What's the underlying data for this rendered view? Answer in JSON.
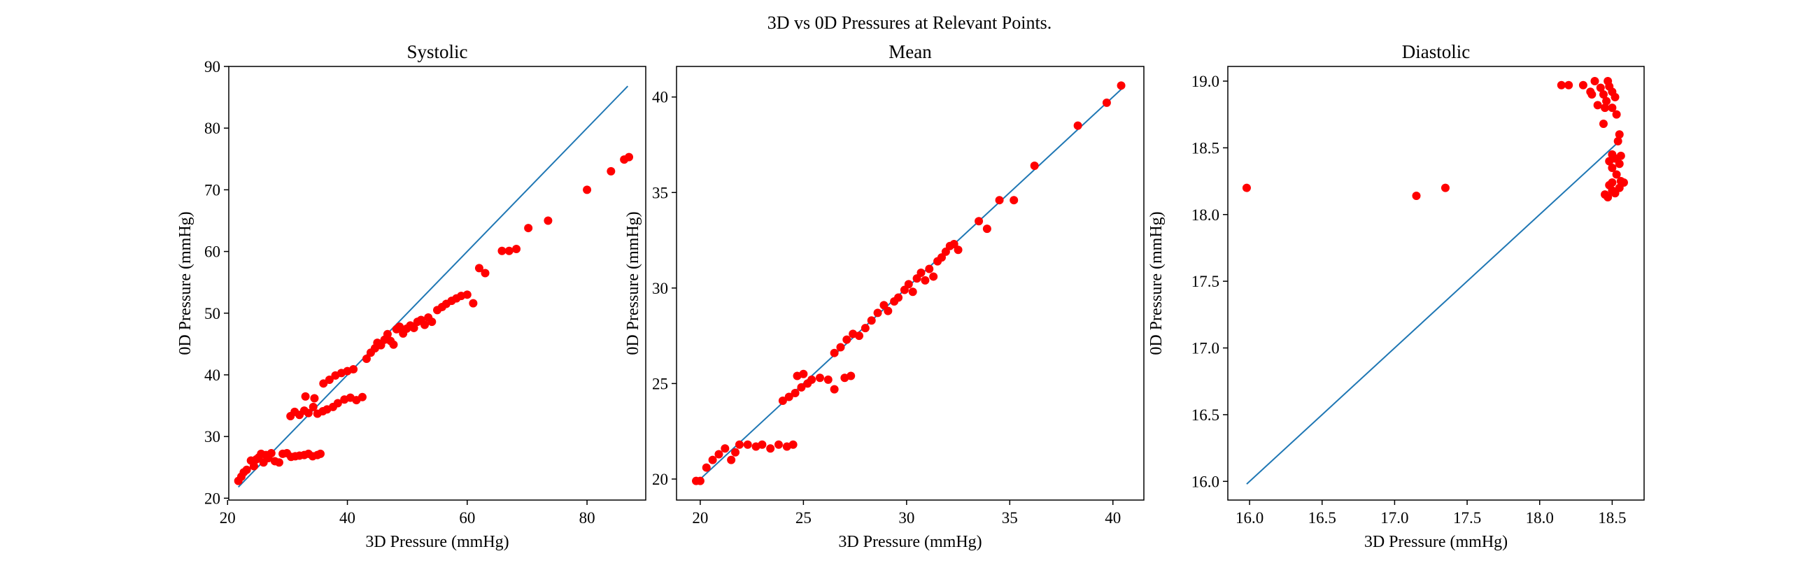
{
  "figure": {
    "title": "3D vs 0D Pressures at Relevant Points."
  },
  "colors": {
    "points": "#ff0000",
    "identity_line": "#1f77b4",
    "axes": "#000000",
    "background": "#ffffff"
  },
  "chart_data": [
    {
      "type": "scatter",
      "title": "Systolic",
      "xlabel": "3D Pressure (mmHg)",
      "ylabel": "0D Pressure (mmHg)",
      "xlim": [
        20.2,
        89.8
      ],
      "ylim": [
        19.7,
        90
      ],
      "xticks": [
        20,
        40,
        60,
        80
      ],
      "yticks": [
        20,
        30,
        40,
        50,
        60,
        70,
        80,
        90
      ],
      "grid": false,
      "legend": "none",
      "identity_line": [
        [
          21.8,
          21.8
        ],
        [
          86.8,
          86.8
        ]
      ],
      "points": [
        [
          21.8,
          22.8
        ],
        [
          22.3,
          23.5
        ],
        [
          22.7,
          24.2
        ],
        [
          23.2,
          24.6
        ],
        [
          23.9,
          26.1
        ],
        [
          24.4,
          25.2
        ],
        [
          24.8,
          26.3
        ],
        [
          25.2,
          26.6
        ],
        [
          25.6,
          27.2
        ],
        [
          26.0,
          25.8
        ],
        [
          26.4,
          27.0
        ],
        [
          26.8,
          26.5
        ],
        [
          27.3,
          27.3
        ],
        [
          27.9,
          26.0
        ],
        [
          28.6,
          25.8
        ],
        [
          29.2,
          27.2
        ],
        [
          29.9,
          27.3
        ],
        [
          30.6,
          26.7
        ],
        [
          31.3,
          26.8
        ],
        [
          32.0,
          26.9
        ],
        [
          32.8,
          27.0
        ],
        [
          33.5,
          27.2
        ],
        [
          34.2,
          26.8
        ],
        [
          35.0,
          27.0
        ],
        [
          35.5,
          27.2
        ],
        [
          30.5,
          33.3
        ],
        [
          31.2,
          34.0
        ],
        [
          32.0,
          33.5
        ],
        [
          32.8,
          34.2
        ],
        [
          33.5,
          33.8
        ],
        [
          34.3,
          34.8
        ],
        [
          35.0,
          33.7
        ],
        [
          35.9,
          34.1
        ],
        [
          36.6,
          34.4
        ],
        [
          37.6,
          34.8
        ],
        [
          38.4,
          35.4
        ],
        [
          39.5,
          36.0
        ],
        [
          40.5,
          36.3
        ],
        [
          41.5,
          35.9
        ],
        [
          42.5,
          36.4
        ],
        [
          33.0,
          36.5
        ],
        [
          34.5,
          36.2
        ],
        [
          36.0,
          38.6
        ],
        [
          37.0,
          39.2
        ],
        [
          38.0,
          39.9
        ],
        [
          39.0,
          40.3
        ],
        [
          40.0,
          40.6
        ],
        [
          41.0,
          40.9
        ],
        [
          43.2,
          42.6
        ],
        [
          43.9,
          43.6
        ],
        [
          44.6,
          44.3
        ],
        [
          45.0,
          45.2
        ],
        [
          45.6,
          44.8
        ],
        [
          46.2,
          45.7
        ],
        [
          46.7,
          46.6
        ],
        [
          47.2,
          45.5
        ],
        [
          47.7,
          44.9
        ],
        [
          48.2,
          47.4
        ],
        [
          48.7,
          47.8
        ],
        [
          49.3,
          46.7
        ],
        [
          49.9,
          47.5
        ],
        [
          50.5,
          48.0
        ],
        [
          51.1,
          47.6
        ],
        [
          51.7,
          48.6
        ],
        [
          52.3,
          48.9
        ],
        [
          52.9,
          48.1
        ],
        [
          53.5,
          49.3
        ],
        [
          54.1,
          48.6
        ],
        [
          55.0,
          50.5
        ],
        [
          55.8,
          51.0
        ],
        [
          56.5,
          51.5
        ],
        [
          57.4,
          52.0
        ],
        [
          58.2,
          52.4
        ],
        [
          59.0,
          52.8
        ],
        [
          60.0,
          53.0
        ],
        [
          61.0,
          51.6
        ],
        [
          62.0,
          57.3
        ],
        [
          63.0,
          56.5
        ],
        [
          65.8,
          60.1
        ],
        [
          67.0,
          60.1
        ],
        [
          68.2,
          60.4
        ],
        [
          70.2,
          63.8
        ],
        [
          73.5,
          65.0
        ],
        [
          80.0,
          70.0
        ],
        [
          84.0,
          73.0
        ],
        [
          86.2,
          74.9
        ],
        [
          87.0,
          75.3
        ]
      ]
    },
    {
      "type": "scatter",
      "title": "Mean",
      "xlabel": "3D Pressure (mmHg)",
      "ylabel": "0D Pressure (mmHg)",
      "xlim": [
        18.85,
        41.5
      ],
      "ylim": [
        18.9,
        41.6
      ],
      "xticks": [
        20,
        25,
        30,
        35,
        40
      ],
      "yticks": [
        20,
        25,
        30,
        35,
        40
      ],
      "grid": false,
      "legend": "none",
      "identity_line": [
        [
          19.9,
          19.9
        ],
        [
          40.5,
          40.5
        ]
      ],
      "points": [
        [
          19.8,
          19.9
        ],
        [
          20.0,
          19.9
        ],
        [
          20.3,
          20.6
        ],
        [
          20.6,
          21.0
        ],
        [
          20.9,
          21.3
        ],
        [
          21.2,
          21.6
        ],
        [
          21.5,
          21.0
        ],
        [
          21.7,
          21.4
        ],
        [
          21.9,
          21.8
        ],
        [
          22.3,
          21.8
        ],
        [
          22.7,
          21.7
        ],
        [
          23.0,
          21.8
        ],
        [
          23.4,
          21.6
        ],
        [
          23.8,
          21.8
        ],
        [
          24.2,
          21.7
        ],
        [
          24.5,
          21.8
        ],
        [
          24.0,
          24.1
        ],
        [
          24.3,
          24.3
        ],
        [
          24.6,
          24.5
        ],
        [
          24.9,
          24.8
        ],
        [
          25.2,
          25.0
        ],
        [
          24.7,
          25.4
        ],
        [
          25.0,
          25.5
        ],
        [
          25.4,
          25.2
        ],
        [
          25.8,
          25.3
        ],
        [
          26.2,
          25.2
        ],
        [
          26.5,
          24.7
        ],
        [
          27.0,
          25.3
        ],
        [
          27.3,
          25.4
        ],
        [
          26.5,
          26.6
        ],
        [
          26.8,
          26.9
        ],
        [
          27.1,
          27.3
        ],
        [
          27.4,
          27.6
        ],
        [
          27.7,
          27.5
        ],
        [
          28.0,
          27.9
        ],
        [
          28.3,
          28.3
        ],
        [
          28.6,
          28.7
        ],
        [
          28.9,
          29.1
        ],
        [
          29.1,
          28.8
        ],
        [
          29.4,
          29.3
        ],
        [
          29.6,
          29.5
        ],
        [
          29.9,
          29.9
        ],
        [
          30.1,
          30.2
        ],
        [
          30.3,
          29.8
        ],
        [
          30.5,
          30.5
        ],
        [
          30.7,
          30.8
        ],
        [
          30.9,
          30.4
        ],
        [
          31.1,
          31.0
        ],
        [
          31.3,
          30.6
        ],
        [
          31.5,
          31.4
        ],
        [
          31.7,
          31.6
        ],
        [
          31.9,
          31.9
        ],
        [
          32.1,
          32.2
        ],
        [
          32.3,
          32.3
        ],
        [
          32.5,
          32.0
        ],
        [
          33.5,
          33.5
        ],
        [
          33.9,
          33.1
        ],
        [
          34.5,
          34.6
        ],
        [
          35.2,
          34.6
        ],
        [
          36.2,
          36.4
        ],
        [
          38.3,
          38.5
        ],
        [
          39.7,
          39.7
        ],
        [
          40.4,
          40.6
        ]
      ]
    },
    {
      "type": "scatter",
      "title": "Diastolic",
      "xlabel": "3D Pressure (mmHg)",
      "ylabel": "0D Pressure (mmHg)",
      "xlim": [
        15.85,
        18.72
      ],
      "ylim": [
        15.86,
        19.11
      ],
      "xticks": [
        16.0,
        16.5,
        17.0,
        17.5,
        18.0,
        18.5
      ],
      "yticks": [
        16.0,
        16.5,
        17.0,
        17.5,
        18.0,
        18.5,
        19.0
      ],
      "grid": false,
      "legend": "none",
      "identity_line": [
        [
          15.98,
          15.98
        ],
        [
          18.56,
          18.56
        ]
      ],
      "points": [
        [
          15.98,
          18.2
        ],
        [
          17.15,
          18.14
        ],
        [
          17.35,
          18.2
        ],
        [
          18.15,
          18.97
        ],
        [
          18.2,
          18.97
        ],
        [
          18.3,
          18.97
        ],
        [
          18.35,
          18.92
        ],
        [
          18.38,
          19.0
        ],
        [
          18.42,
          18.95
        ],
        [
          18.44,
          18.9
        ],
        [
          18.46,
          18.85
        ],
        [
          18.48,
          18.96
        ],
        [
          18.5,
          18.92
        ],
        [
          18.52,
          18.88
        ],
        [
          18.4,
          18.82
        ],
        [
          18.45,
          18.8
        ],
        [
          18.5,
          18.8
        ],
        [
          18.53,
          18.75
        ],
        [
          18.36,
          18.9
        ],
        [
          18.47,
          19.0
        ],
        [
          18.44,
          18.68
        ],
        [
          18.54,
          18.55
        ],
        [
          18.55,
          18.6
        ],
        [
          18.5,
          18.45
        ],
        [
          18.52,
          18.42
        ],
        [
          18.55,
          18.38
        ],
        [
          18.48,
          18.4
        ],
        [
          18.5,
          18.35
        ],
        [
          18.53,
          18.3
        ],
        [
          18.56,
          18.25
        ],
        [
          18.5,
          18.24
        ],
        [
          18.55,
          18.2
        ],
        [
          18.48,
          18.22
        ],
        [
          18.5,
          18.18
        ],
        [
          18.45,
          18.15
        ],
        [
          18.47,
          18.13
        ],
        [
          18.52,
          18.16
        ],
        [
          18.58,
          18.24
        ],
        [
          18.56,
          18.44
        ]
      ]
    }
  ]
}
